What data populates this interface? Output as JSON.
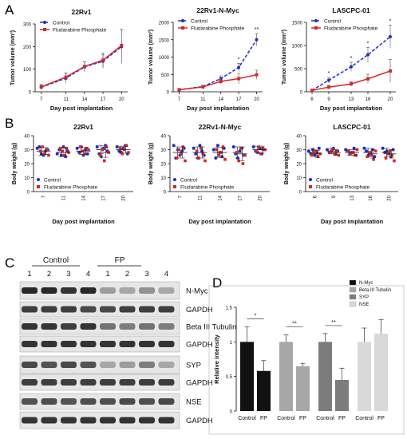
{
  "panels": {
    "A": "A",
    "B": "B",
    "C": "C",
    "D": "D"
  },
  "colors": {
    "control": "#1f2fbf",
    "fp": "#d8262a",
    "n_myc": "#111111",
    "beta3": "#a7a7a7",
    "syp": "#7c7c7c",
    "nse": "#d9d9d9"
  },
  "chart_data": [
    {
      "panel": "A",
      "type": "line",
      "title": "22Rv1",
      "xlabel": "Day post implantation",
      "ylabel": "Tumor volume (mm³)",
      "x": [
        7,
        11,
        14,
        17,
        20
      ],
      "xlim": [
        6,
        21
      ],
      "ylim": [
        0,
        300
      ],
      "yticks": [
        0,
        100,
        200,
        300
      ],
      "series": [
        {
          "name": "Control",
          "values": [
            20,
            60,
            110,
            135,
            200
          ],
          "err": [
            10,
            22,
            22,
            30,
            75
          ],
          "style": "dashed"
        },
        {
          "name": "Fludarabine Phosphate",
          "values": [
            22,
            65,
            112,
            140,
            205
          ],
          "err": [
            10,
            18,
            20,
            32,
            70
          ],
          "style": "solid"
        }
      ],
      "sig": []
    },
    {
      "panel": "A",
      "type": "line",
      "title": "22Rv1-N-Myc",
      "xlabel": "Day post implantation",
      "ylabel": "Tumor volume (mm³)",
      "x": [
        7,
        11,
        14,
        17,
        20
      ],
      "xlim": [
        6,
        21
      ],
      "ylim": [
        0,
        2000
      ],
      "yticks": [
        0,
        500,
        1000,
        1500,
        2000
      ],
      "series": [
        {
          "name": "Control",
          "values": [
            60,
            150,
            380,
            700,
            1500
          ],
          "err": [
            20,
            40,
            80,
            120,
            180
          ],
          "style": "dashed"
        },
        {
          "name": "Fludarabine Phosphate",
          "values": [
            60,
            140,
            300,
            380,
            490
          ],
          "err": [
            20,
            40,
            80,
            150,
            130
          ],
          "style": "solid"
        }
      ],
      "sig": [
        {
          "x": 17,
          "label": "*"
        },
        {
          "x": 20,
          "label": "**"
        }
      ]
    },
    {
      "panel": "A",
      "type": "line",
      "title": "LASCPC-01",
      "xlabel": "Day post implantation",
      "ylabel": "Tumor volume (mm³)",
      "x": [
        6,
        9,
        13,
        16,
        20
      ],
      "xlim": [
        5,
        21
      ],
      "ylim": [
        0,
        1500
      ],
      "yticks": [
        0,
        500,
        1000,
        1500
      ],
      "series": [
        {
          "name": "Control",
          "values": [
            30,
            250,
            540,
            800,
            1190
          ],
          "err": [
            15,
            60,
            100,
            160,
            250
          ],
          "style": "dashed"
        },
        {
          "name": "Fludarabine Phosphate",
          "values": [
            30,
            100,
            170,
            280,
            450
          ],
          "err": [
            15,
            40,
            50,
            100,
            250
          ],
          "style": "solid"
        }
      ],
      "sig": [
        {
          "x": 9,
          "label": "*"
        },
        {
          "x": 13,
          "label": "*"
        },
        {
          "x": 16,
          "label": "*"
        },
        {
          "x": 20,
          "label": "*"
        }
      ]
    },
    {
      "panel": "B",
      "type": "scatter",
      "title": "22Rv1",
      "xlabel": "Day post implantation",
      "ylabel": "Body weight (g)",
      "categories": [
        "7",
        "11",
        "14",
        "17",
        "20"
      ],
      "ylim": [
        0,
        40
      ],
      "yticks": [
        0,
        10,
        20,
        30,
        40
      ],
      "series": [
        {
          "name": "Control",
          "mean": [
            29,
            28,
            29,
            30,
            30
          ],
          "sd": [
            3,
            3,
            2.5,
            3,
            2.5
          ],
          "points": [
            [
              31,
              32,
              27,
              26,
              29,
              30
            ],
            [
              27,
              30,
              26,
              32,
              25,
              29
            ],
            [
              31,
              28,
              32,
              26,
              30,
              27
            ],
            [
              32,
              27,
              25,
              31,
              33,
              29
            ],
            [
              32,
              29,
              28,
              31,
              33,
              27
            ]
          ]
        },
        {
          "name": "Fludarabine Phosphate",
          "mean": [
            29,
            28,
            29,
            28,
            30
          ],
          "sd": [
            2.5,
            3,
            2.5,
            3.5,
            2.5
          ],
          "points": [
            [
              29,
              32,
              27,
              30,
              26
            ],
            [
              31,
              29,
              26,
              31,
              28
            ],
            [
              32,
              29,
              27,
              31,
              30
            ],
            [
              26,
              30,
              22,
              32,
              28
            ],
            [
              31,
              27,
              30,
              33,
              28
            ]
          ]
        }
      ]
    },
    {
      "panel": "B",
      "type": "scatter",
      "title": "22Rv1-N-Myc",
      "xlabel": "Day post implantation",
      "ylabel": "Body weight (g)",
      "categories": [
        "7",
        "11",
        "14",
        "17",
        "20"
      ],
      "ylim": [
        0,
        40
      ],
      "yticks": [
        0,
        10,
        20,
        30,
        40
      ],
      "series": [
        {
          "name": "Control",
          "mean": [
            28,
            28,
            28,
            28,
            30
          ],
          "sd": [
            4,
            4,
            3.5,
            4,
            2.5
          ],
          "points": [
            [
              33,
              24,
              30,
              26,
              29,
              31
            ],
            [
              31,
              27,
              24,
              33,
              29,
              26
            ],
            [
              30,
              24,
              33,
              28,
              25,
              31
            ],
            [
              32,
              27,
              24,
              29,
              31,
              26
            ],
            [
              32,
              29,
              28,
              31,
              27,
              30
            ]
          ]
        },
        {
          "name": "Fludarabine Phosphate",
          "mean": [
            28,
            28,
            28,
            27,
            30
          ],
          "sd": [
            4,
            4,
            3.5,
            5,
            2.5
          ],
          "points": [
            [
              24,
              30,
              27,
              32,
              22
            ],
            [
              29,
              24,
              31,
              27,
              22
            ],
            [
              30,
              26,
              28,
              32,
              23
            ],
            [
              28,
              22,
              31,
              20,
              26
            ],
            [
              29,
              32,
              27,
              31,
              30
            ]
          ]
        }
      ]
    },
    {
      "panel": "B",
      "type": "scatter",
      "title": "LASCPC-01",
      "xlabel": "Day post implantation",
      "ylabel": "Body weight (g)",
      "categories": [
        "6",
        "9",
        "13",
        "16",
        "20"
      ],
      "ylim": [
        0,
        40
      ],
      "yticks": [
        0,
        10,
        20,
        30,
        40
      ],
      "series": [
        {
          "name": "Control",
          "mean": [
            28,
            29,
            28,
            28,
            28
          ],
          "sd": [
            2.5,
            2,
            2,
            3,
            3
          ],
          "points": [
            [
              29,
              27,
              30,
              26,
              28,
              31
            ],
            [
              30,
              28,
              29,
              31,
              27,
              29
            ],
            [
              30,
              29,
              27,
              28,
              31,
              26
            ],
            [
              31,
              29,
              26,
              28,
              30,
              25
            ],
            [
              31,
              28,
              29,
              27,
              25,
              30
            ]
          ]
        },
        {
          "name": "Fludarabine Phosphate",
          "mean": [
            27,
            28,
            28,
            27,
            27
          ],
          "sd": [
            2.5,
            2,
            2,
            3,
            3
          ],
          "points": [
            [
              26,
              28,
              29,
              25,
              27
            ],
            [
              28,
              30,
              27,
              29,
              26
            ],
            [
              29,
              27,
              28,
              26,
              30
            ],
            [
              25,
              28,
              26,
              23,
              29
            ],
            [
              24,
              27,
              29,
              26,
              22
            ]
          ]
        }
      ]
    },
    {
      "panel": "D",
      "type": "bar",
      "xlabel": "",
      "ylabel": "Relative intensity",
      "ylim": [
        0,
        1.5
      ],
      "yticks": [
        0,
        0.5,
        1.0,
        1.5
      ],
      "legend": [
        "N-Myc",
        "Beta III Tubulin",
        "SYP",
        "NSE"
      ],
      "groups": [
        {
          "name": "N-Myc",
          "labels": [
            "Control",
            "FP"
          ],
          "values": [
            1.0,
            0.58
          ],
          "err": [
            0.22,
            0.15
          ],
          "sig": "*"
        },
        {
          "name": "Beta III Tubulin",
          "labels": [
            "Control",
            "FP"
          ],
          "values": [
            1.0,
            0.65
          ],
          "err": [
            0.1,
            0.04
          ],
          "sig": "**"
        },
        {
          "name": "SYP",
          "labels": [
            "Control",
            "FP"
          ],
          "values": [
            1.0,
            0.45
          ],
          "err": [
            0.12,
            0.17
          ],
          "sig": "**"
        },
        {
          "name": "NSE",
          "labels": [
            "Control",
            "FP"
          ],
          "values": [
            1.0,
            1.12
          ],
          "err": [
            0.2,
            0.2
          ],
          "sig": ""
        }
      ]
    }
  ],
  "legend_labels": {
    "control": "Control",
    "fp": "Fludarabine Phosphate"
  },
  "western": {
    "groups": [
      "Control",
      "FP"
    ],
    "lanes": [
      "1",
      "2",
      "3",
      "4",
      "1",
      "2",
      "3",
      "4"
    ],
    "blots": [
      {
        "label": "N-Myc",
        "intensity": [
          0.9,
          0.9,
          0.85,
          0.9,
          0.35,
          0.3,
          0.4,
          0.3
        ]
      },
      {
        "label": "GAPDH",
        "intensity": [
          0.8,
          0.8,
          0.8,
          0.75,
          0.75,
          0.8,
          0.8,
          0.8
        ]
      },
      {
        "label": "Beta III Tubulin",
        "intensity": [
          0.85,
          0.85,
          0.8,
          0.85,
          0.55,
          0.5,
          0.55,
          0.5
        ]
      },
      {
        "label": "GAPDH",
        "intensity": [
          0.85,
          0.85,
          0.85,
          0.85,
          0.85,
          0.85,
          0.85,
          0.85
        ]
      },
      {
        "label": "SYP",
        "intensity": [
          0.75,
          0.7,
          0.75,
          0.7,
          0.3,
          0.35,
          0.5,
          0.3
        ]
      },
      {
        "label": "GAPDH",
        "intensity": [
          0.8,
          0.8,
          0.8,
          0.8,
          0.8,
          0.8,
          0.8,
          0.8
        ]
      },
      {
        "label": "NSE",
        "intensity": [
          0.7,
          0.72,
          0.7,
          0.72,
          0.72,
          0.75,
          0.72,
          0.75
        ]
      },
      {
        "label": "GAPDH",
        "intensity": [
          0.85,
          0.85,
          0.85,
          0.85,
          0.85,
          0.85,
          0.85,
          0.85
        ]
      }
    ]
  }
}
